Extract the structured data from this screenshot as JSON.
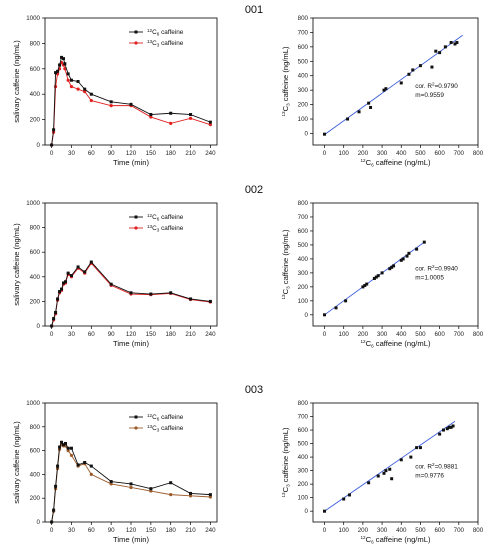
{
  "chart_data": [
    {
      "type": "line",
      "panel": "001",
      "title": "001",
      "xlabel": "Time (min)",
      "ylabel": "salivary caffeine (ng/mL)",
      "xlim": [
        -10,
        250
      ],
      "ylim": [
        0,
        1000
      ],
      "xticks": [
        0,
        30,
        60,
        90,
        120,
        150,
        180,
        210,
        240
      ],
      "yticks": [
        0,
        200,
        400,
        600,
        800,
        1000
      ],
      "legend_position": "top-right",
      "series": [
        {
          "name_iso": "12",
          "name_sub": "6",
          "name_text": "caffeine",
          "color": "#111111",
          "x": [
            0,
            3,
            6,
            9,
            12,
            15,
            18,
            20,
            25,
            30,
            40,
            50,
            60,
            90,
            120,
            150,
            180,
            210,
            240
          ],
          "values": [
            0,
            120,
            570,
            580,
            630,
            690,
            680,
            640,
            560,
            510,
            500,
            440,
            400,
            340,
            320,
            240,
            250,
            240,
            180
          ]
        },
        {
          "name_iso": "13",
          "name_sub": "3",
          "name_text": "caffeine",
          "color": "#e02020",
          "x": [
            0,
            3,
            6,
            9,
            12,
            15,
            18,
            20,
            25,
            30,
            40,
            50,
            60,
            90,
            120,
            150,
            180,
            210,
            240
          ],
          "values": [
            0,
            100,
            460,
            560,
            600,
            650,
            630,
            600,
            510,
            460,
            440,
            420,
            350,
            310,
            310,
            220,
            170,
            210,
            160
          ]
        }
      ]
    },
    {
      "type": "scatter",
      "panel": "001-correlation",
      "xlabel_iso": "12",
      "xlabel_sub": "6",
      "xlabel_text": "caffeine (ng/mL)",
      "ylabel_iso": "13",
      "ylabel_sub": "3",
      "ylabel_text": "caffeine (ng/mL)",
      "xlim": [
        -60,
        800
      ],
      "ylim": [
        -80,
        800
      ],
      "xticks": [
        0,
        100,
        200,
        300,
        400,
        500,
        600,
        700,
        800
      ],
      "yticks": [
        0,
        100,
        200,
        300,
        400,
        500,
        600,
        700,
        800
      ],
      "r2_text": "cor. R",
      "r2_value": "=0.9790",
      "slope_text": "m=0.9559",
      "fit": {
        "slope": 0.9559,
        "intercept": -8,
        "x": [
          0,
          720
        ]
      },
      "points": [
        [
          0,
          -5
        ],
        [
          120,
          100
        ],
        [
          180,
          150
        ],
        [
          230,
          210
        ],
        [
          240,
          180
        ],
        [
          310,
          300
        ],
        [
          320,
          310
        ],
        [
          400,
          350
        ],
        [
          440,
          410
        ],
        [
          460,
          440
        ],
        [
          500,
          470
        ],
        [
          560,
          460
        ],
        [
          580,
          570
        ],
        [
          600,
          560
        ],
        [
          630,
          600
        ],
        [
          660,
          630
        ],
        [
          690,
          630
        ],
        [
          680,
          620
        ]
      ]
    },
    {
      "type": "line",
      "panel": "002",
      "title": "002",
      "xlabel": "Time (min)",
      "ylabel": "salivary caffeine (ng/mL)",
      "xlim": [
        -10,
        250
      ],
      "ylim": [
        0,
        1000
      ],
      "xticks": [
        0,
        30,
        60,
        90,
        120,
        150,
        180,
        210,
        240
      ],
      "yticks": [
        0,
        200,
        400,
        600,
        800,
        1000
      ],
      "legend_position": "top-right",
      "series": [
        {
          "name_iso": "12",
          "name_sub": "6",
          "name_text": "caffeine",
          "color": "#111111",
          "x": [
            0,
            3,
            6,
            9,
            12,
            15,
            18,
            21,
            25,
            30,
            40,
            50,
            60,
            90,
            120,
            150,
            180,
            210,
            240
          ],
          "values": [
            0,
            60,
            110,
            220,
            280,
            300,
            350,
            360,
            430,
            410,
            480,
            440,
            520,
            340,
            270,
            260,
            270,
            220,
            200
          ]
        },
        {
          "name_iso": "13",
          "name_sub": "3",
          "name_text": "caffeine",
          "color": "#e02020",
          "x": [
            0,
            3,
            6,
            9,
            12,
            15,
            18,
            21,
            25,
            30,
            40,
            50,
            60,
            90,
            120,
            150,
            180,
            210,
            240
          ],
          "values": [
            0,
            50,
            100,
            210,
            270,
            290,
            340,
            350,
            420,
            400,
            470,
            430,
            510,
            330,
            260,
            255,
            265,
            215,
            195
          ]
        }
      ]
    },
    {
      "type": "scatter",
      "panel": "002-correlation",
      "xlabel_iso": "12",
      "xlabel_sub": "6",
      "xlabel_text": "caffeine (ng/mL)",
      "ylabel_iso": "13",
      "ylabel_sub": "3",
      "ylabel_text": "caffeine (ng/mL)",
      "xlim": [
        -60,
        800
      ],
      "ylim": [
        -80,
        800
      ],
      "xticks": [
        0,
        100,
        200,
        300,
        400,
        500,
        600,
        700,
        800
      ],
      "yticks": [
        0,
        100,
        200,
        300,
        400,
        500,
        600,
        700,
        800
      ],
      "r2_text": "cor. R",
      "r2_value": "=0.9940",
      "slope_text": "m=1.0005",
      "fit": {
        "slope": 1.0005,
        "intercept": 0,
        "x": [
          0,
          520
        ]
      },
      "points": [
        [
          0,
          0
        ],
        [
          60,
          50
        ],
        [
          110,
          100
        ],
        [
          200,
          200
        ],
        [
          210,
          210
        ],
        [
          220,
          220
        ],
        [
          260,
          260
        ],
        [
          270,
          270
        ],
        [
          280,
          280
        ],
        [
          300,
          300
        ],
        [
          340,
          330
        ],
        [
          350,
          340
        ],
        [
          360,
          350
        ],
        [
          400,
          390
        ],
        [
          410,
          400
        ],
        [
          430,
          420
        ],
        [
          440,
          440
        ],
        [
          480,
          470
        ],
        [
          520,
          520
        ]
      ]
    },
    {
      "type": "line",
      "panel": "003",
      "title": "003",
      "xlabel": "Time (min)",
      "ylabel": "salivary caffeine (ng/mL)",
      "xlim": [
        -10,
        250
      ],
      "ylim": [
        0,
        1000
      ],
      "xticks": [
        0,
        30,
        60,
        90,
        120,
        150,
        180,
        210,
        240
      ],
      "yticks": [
        0,
        200,
        400,
        600,
        800,
        1000
      ],
      "legend_position": "top-right",
      "series": [
        {
          "name_iso": "12",
          "name_sub": "6",
          "name_text": "caffeine",
          "color": "#111111",
          "x": [
            0,
            3,
            6,
            9,
            12,
            15,
            18,
            21,
            25,
            30,
            40,
            50,
            60,
            90,
            120,
            150,
            180,
            210,
            240
          ],
          "values": [
            0,
            100,
            300,
            470,
            630,
            670,
            650,
            660,
            620,
            620,
            480,
            500,
            470,
            340,
            320,
            280,
            330,
            240,
            230
          ]
        },
        {
          "name_iso": "13",
          "name_sub": "3",
          "name_text": "caffeine",
          "color": "#9b5a2a",
          "x": [
            0,
            3,
            6,
            9,
            12,
            15,
            18,
            21,
            25,
            30,
            40,
            50,
            60,
            90,
            120,
            150,
            180,
            210,
            240
          ],
          "values": [
            0,
            90,
            280,
            450,
            610,
            650,
            640,
            640,
            600,
            560,
            470,
            490,
            400,
            320,
            290,
            260,
            230,
            220,
            210
          ]
        }
      ]
    },
    {
      "type": "scatter",
      "panel": "003-correlation",
      "xlabel_iso": "12",
      "xlabel_sub": "6",
      "xlabel_text": "caffeine (ng/mL)",
      "ylabel_iso": "13",
      "ylabel_sub": "3",
      "ylabel_text": "caffeine (ng/mL)",
      "xlim": [
        -60,
        800
      ],
      "ylim": [
        -80,
        800
      ],
      "xticks": [
        0,
        100,
        200,
        300,
        400,
        500,
        600,
        700,
        800
      ],
      "yticks": [
        0,
        100,
        200,
        300,
        400,
        500,
        600,
        700,
        800
      ],
      "r2_text": "cor. R",
      "r2_value": "=0.9881",
      "slope_text": "m=0.9776",
      "fit": {
        "slope": 0.9776,
        "intercept": 0,
        "x": [
          0,
          680
        ]
      },
      "points": [
        [
          0,
          0
        ],
        [
          100,
          90
        ],
        [
          130,
          120
        ],
        [
          230,
          210
        ],
        [
          280,
          260
        ],
        [
          310,
          280
        ],
        [
          320,
          300
        ],
        [
          340,
          310
        ],
        [
          350,
          240
        ],
        [
          400,
          380
        ],
        [
          450,
          400
        ],
        [
          480,
          470
        ],
        [
          500,
          470
        ],
        [
          600,
          570
        ],
        [
          620,
          600
        ],
        [
          640,
          610
        ],
        [
          650,
          620
        ],
        [
          660,
          620
        ],
        [
          670,
          630
        ]
      ]
    }
  ]
}
